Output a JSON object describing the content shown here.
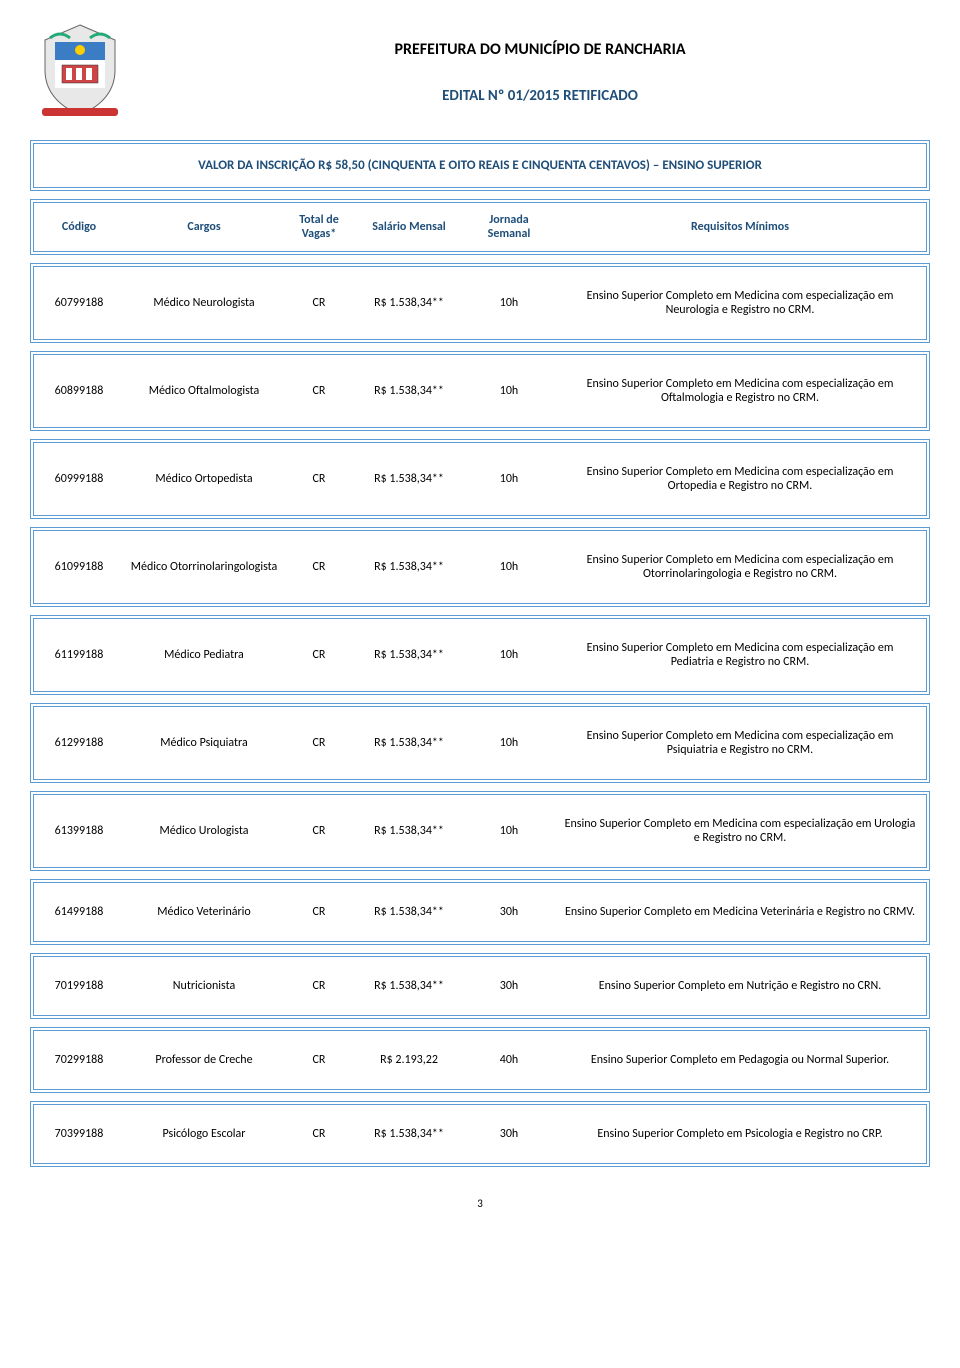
{
  "header": {
    "org_title": "PREFEITURA DO MUNICÍPIO DE RANCHARIA",
    "doc_title": "EDITAL Nº 01/2015 RETIFICADO"
  },
  "section_title": "VALOR DA INSCRIÇÃO R$ 58,50 (CINQUENTA E OITO REAIS E CINQUENTA CENTAVOS) – ENSINO SUPERIOR",
  "columns": {
    "codigo": "Código",
    "cargo": "Cargos",
    "vagas": "Total de Vagas*",
    "salario": "Salário Mensal",
    "jornada": "Jornada Semanal",
    "requisitos": "Requisitos Mínimos"
  },
  "rows": [
    {
      "codigo": "60799188",
      "cargo": "Médico Neurologista",
      "vagas": "CR",
      "salario": "R$ 1.538,34**",
      "jornada": "10h",
      "requisitos": "Ensino Superior Completo em Medicina com especialização em Neurologia e Registro no CRM."
    },
    {
      "codigo": "60899188",
      "cargo": "Médico Oftalmologista",
      "vagas": "CR",
      "salario": "R$ 1.538,34**",
      "jornada": "10h",
      "requisitos": "Ensino Superior Completo em Medicina com especialização em Oftalmologia e Registro no CRM."
    },
    {
      "codigo": "60999188",
      "cargo": "Médico Ortopedista",
      "vagas": "CR",
      "salario": "R$ 1.538,34**",
      "jornada": "10h",
      "requisitos": "Ensino Superior Completo em Medicina com especialização em Ortopedia e Registro no CRM."
    },
    {
      "codigo": "61099188",
      "cargo": "Médico Otorrinolaringologista",
      "vagas": "CR",
      "salario": "R$ 1.538,34**",
      "jornada": "10h",
      "requisitos": "Ensino Superior Completo em Medicina com especialização em Otorrinolaringologia e Registro no CRM."
    },
    {
      "codigo": "61199188",
      "cargo": "Médico Pediatra",
      "vagas": "CR",
      "salario": "R$ 1.538,34**",
      "jornada": "10h",
      "requisitos": "Ensino Superior Completo em Medicina com especialização em Pediatria e Registro no CRM."
    },
    {
      "codigo": "61299188",
      "cargo": "Médico Psiquiatra",
      "vagas": "CR",
      "salario": "R$ 1.538,34**",
      "jornada": "10h",
      "requisitos": "Ensino Superior Completo em Medicina com especialização em Psiquiatria e Registro no CRM."
    },
    {
      "codigo": "61399188",
      "cargo": "Médico Urologista",
      "vagas": "CR",
      "salario": "R$ 1.538,34**",
      "jornada": "10h",
      "requisitos": "Ensino Superior Completo em Medicina com especialização em Urologia e Registro no CRM."
    },
    {
      "codigo": "61499188",
      "cargo": "Médico Veterinário",
      "vagas": "CR",
      "salario": "R$ 1.538,34**",
      "jornada": "30h",
      "requisitos": "Ensino Superior Completo em Medicina Veterinária e Registro no CRMV."
    },
    {
      "codigo": "70199188",
      "cargo": "Nutricionista",
      "vagas": "CR",
      "salario": "R$ 1.538,34**",
      "jornada": "30h",
      "requisitos": "Ensino Superior Completo em Nutrição e Registro no CRN."
    },
    {
      "codigo": "70299188",
      "cargo": "Professor de Creche",
      "vagas": "CR",
      "salario": "R$ 2.193,22",
      "jornada": "40h",
      "requisitos": "Ensino Superior Completo em Pedagogia ou Normal Superior."
    },
    {
      "codigo": "70399188",
      "cargo": "Psicólogo Escolar",
      "vagas": "CR",
      "salario": "R$ 1.538,34**",
      "jornada": "30h",
      "requisitos": "Ensino Superior Completo em Psicologia e Registro no CRP."
    }
  ],
  "page_number": "3",
  "colors": {
    "border": "#5b9bd5",
    "heading_text": "#1f4e79",
    "body_text": "#000000",
    "background": "#ffffff"
  }
}
